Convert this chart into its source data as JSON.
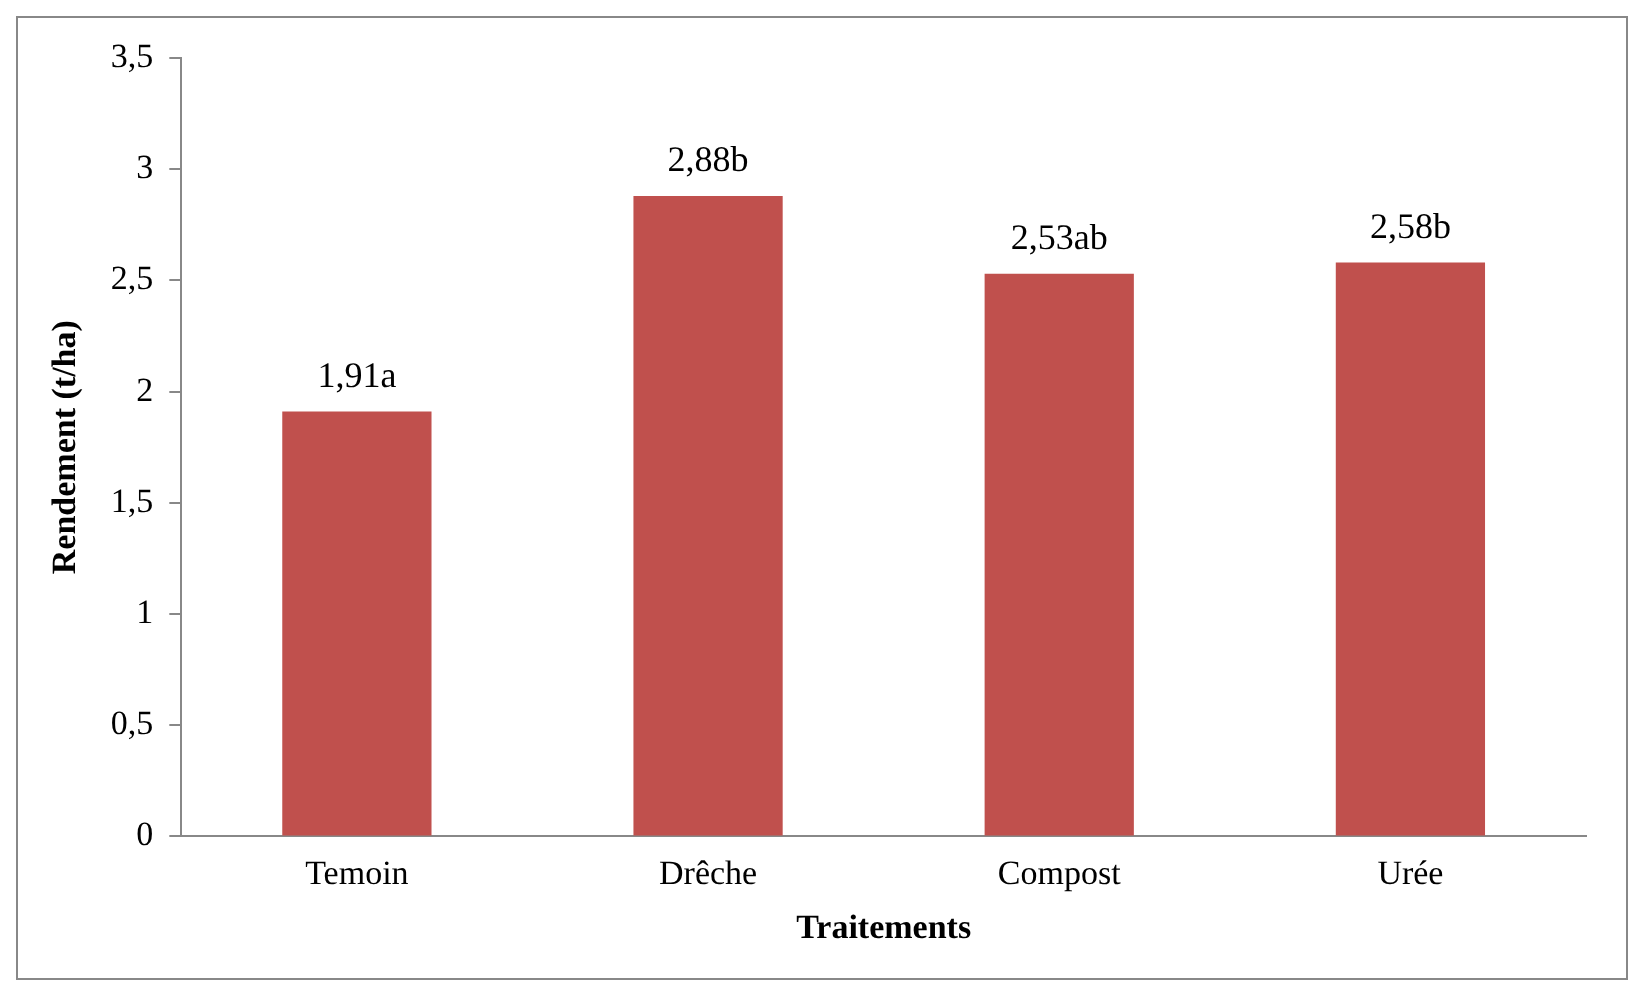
{
  "chart_data": {
    "type": "bar",
    "xlabel": "Traitements",
    "ylabel": "Rendement (t/ha)",
    "categories": [
      "Temoin",
      "Drêche",
      "Compost",
      "Urée"
    ],
    "values": [
      1.91,
      2.88,
      2.53,
      2.58
    ],
    "value_labels": [
      "1,91a",
      "2,88b",
      "2,53ab",
      "2,58b"
    ],
    "color": "#c0504d",
    "ylim": [
      0,
      3.5
    ],
    "yticks": [
      0,
      {
        "value": 0.5,
        "label": "0,5"
      },
      1,
      {
        "value": 1.5,
        "label": "1,5"
      },
      2,
      {
        "value": 2.5,
        "label": "2,5"
      },
      3,
      {
        "value": 3.5,
        "label": "3,5"
      }
    ],
    "grid": false,
    "legend": false
  }
}
